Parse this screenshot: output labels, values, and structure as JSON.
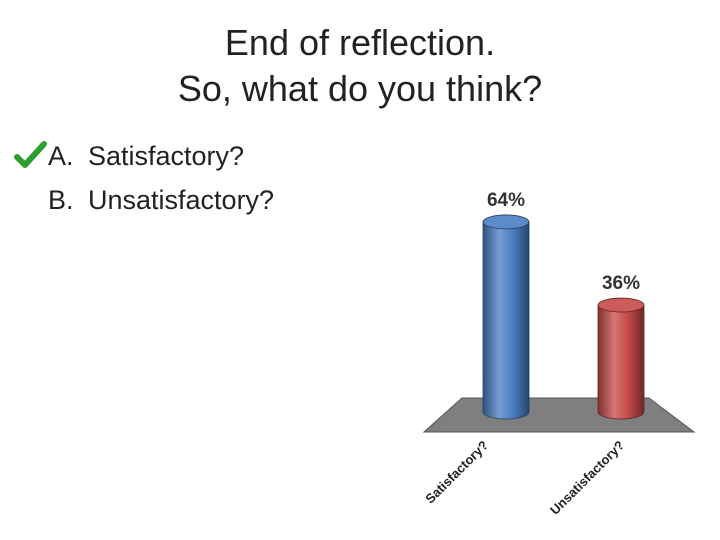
{
  "slide": {
    "title_line1": "End of reflection.",
    "title_line2": "So, what do you think?",
    "options": [
      {
        "letter": "A.",
        "text": "Satisfactory?",
        "checked": true
      },
      {
        "letter": "B.",
        "text": "Unsatisfactory?",
        "checked": false
      }
    ],
    "check_color": "#2e9e2e"
  },
  "chart_data": {
    "type": "bar",
    "categories": [
      "Satisfactory?",
      "Unsatisfactory?"
    ],
    "values": [
      64,
      36
    ],
    "value_labels": [
      "64%",
      "36%"
    ],
    "ylim": [
      0,
      100
    ],
    "colors": [
      "#4a7ec4",
      "#c64a47"
    ],
    "floor_color": "#7f7f7f",
    "title": "",
    "xlabel": "",
    "ylabel": "",
    "grid": false,
    "legend": "none"
  }
}
